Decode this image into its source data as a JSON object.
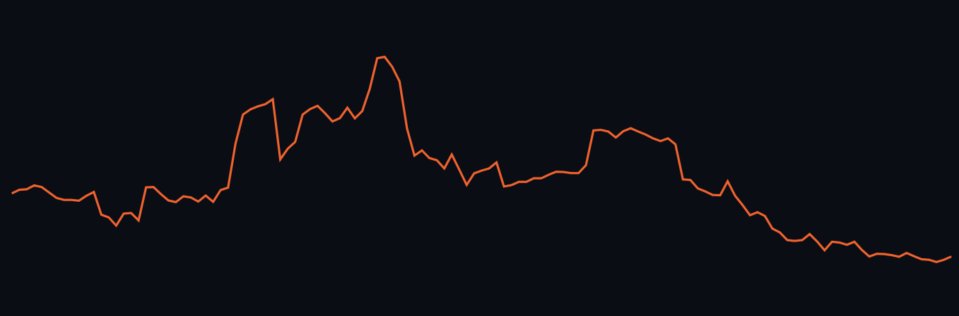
{
  "theme": {
    "background": "#0a0e14",
    "line_color": "#f0622e"
  },
  "chart_data": {
    "type": "line",
    "title": "",
    "xlabel": "",
    "ylabel": "",
    "grid": false,
    "legend": "none",
    "ylim": [
      0,
      100
    ],
    "series": [
      {
        "values": [
          39.5,
          40.8,
          41.0,
          42.4,
          41.8,
          39.8,
          37.8,
          37.1,
          37.1,
          36.8,
          38.6,
          40.0,
          31.7,
          30.7,
          27.7,
          32.1,
          32.3,
          29.6,
          41.7,
          41.8,
          39.2,
          36.9,
          36.3,
          38.4,
          38.0,
          36.5,
          38.7,
          36.4,
          40.7,
          41.6,
          57.7,
          68.3,
          70.2,
          71.3,
          72.1,
          73.9,
          51.9,
          55.8,
          58.3,
          68.3,
          70.3,
          71.5,
          68.8,
          65.8,
          67.0,
          70.8,
          66.9,
          69.6,
          77.7,
          88.9,
          89.4,
          85.8,
          80.4,
          63.2,
          53.3,
          55.2,
          52.4,
          51.6,
          48.6,
          53.7,
          48.2,
          42.6,
          46.8,
          47.8,
          48.6,
          50.8,
          42.0,
          42.5,
          43.7,
          43.7,
          45.0,
          45.0,
          46.3,
          47.4,
          47.3,
          46.9,
          46.9,
          49.8,
          62.5,
          62.7,
          62.1,
          59.9,
          62.2,
          63.3,
          62.1,
          61.0,
          59.6,
          58.6,
          59.6,
          57.4,
          44.6,
          44.4,
          41.3,
          40.2,
          38.9,
          38.8,
          43.9,
          38.6,
          35.2,
          31.5,
          32.6,
          31.2,
          26.6,
          25.2,
          22.4,
          22.1,
          22.4,
          24.6,
          21.9,
          18.7,
          21.8,
          21.5,
          20.7,
          21.8,
          18.8,
          16.4,
          17.4,
          17.3,
          16.9,
          16.3,
          17.7,
          16.5,
          15.4,
          15.2,
          14.4,
          15.2,
          16.4
        ]
      }
    ]
  }
}
